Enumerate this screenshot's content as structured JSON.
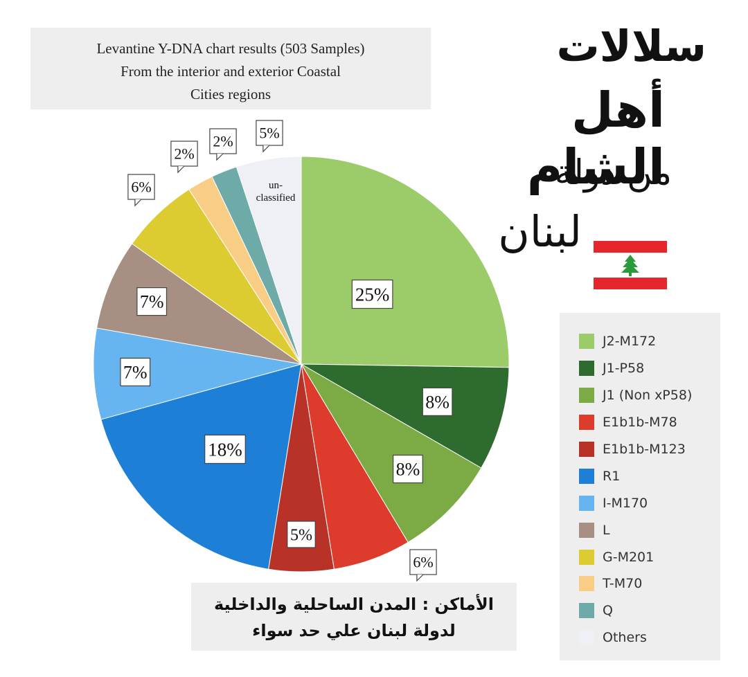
{
  "title_box": {
    "lines": [
      "Levantine Y-DNA chart results (503 Samples)",
      "From the interior and exterior Coastal",
      "Cities regions"
    ]
  },
  "arabic_title": {
    "line1": "سلالات",
    "line2": "أهل الشام",
    "line3": "من دولة",
    "line4": "لبنان"
  },
  "bottom_note": {
    "line1": "الأماكن : المدن الساحلية والداخلية",
    "line2": "لدولة لبنان علي حد سواء"
  },
  "flag_colors": {
    "red": "#e5262b",
    "white": "#ffffff",
    "cedar": "#2a9a3a"
  },
  "chart_data": {
    "type": "pie",
    "title": "Levantine Y-DNA chart results (503 Samples) From the interior and exterior Coastal Cities regions",
    "slices": [
      {
        "name": "J2-M172",
        "value": 25,
        "label": "25%",
        "color": "#9ccc6a"
      },
      {
        "name": "J1-P58",
        "value": 8,
        "label": "8%",
        "color": "#2e6b2e"
      },
      {
        "name": "J1 (Non xP58)",
        "value": 8,
        "label": "8%",
        "color": "#7cab45"
      },
      {
        "name": "E1b1b-M78",
        "value": 6,
        "label": "6%",
        "color": "#dd3c2c"
      },
      {
        "name": "E1b1b-M123",
        "value": 5,
        "label": "5%",
        "color": "#b83228"
      },
      {
        "name": "R1",
        "value": 18,
        "label": "18%",
        "color": "#1e7fd6"
      },
      {
        "name": "I-M170",
        "value": 7,
        "label": "7%",
        "color": "#66b4f0"
      },
      {
        "name": "L",
        "value": 7,
        "label": "7%",
        "color": "#a79083"
      },
      {
        "name": "G-M201",
        "value": 6,
        "label": "6%",
        "color": "#ddcb32"
      },
      {
        "name": "T-M70",
        "value": 2,
        "label": "2%",
        "color": "#f8ce86"
      },
      {
        "name": "Q",
        "value": 2,
        "label": "2%",
        "color": "#6eaaa8"
      },
      {
        "name": "Others",
        "value": 5,
        "label": "5%",
        "color": "#eef0f5",
        "inner_text": [
          "un-",
          "classified"
        ]
      }
    ],
    "legend_placement": "right"
  }
}
